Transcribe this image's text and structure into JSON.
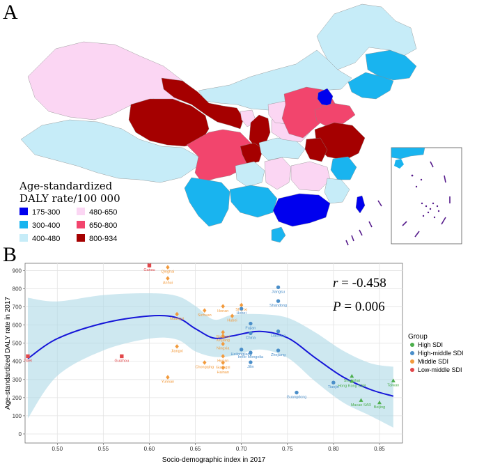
{
  "panel_a": {
    "letter": "A",
    "legend": {
      "title_line1": "Age-standardized",
      "title_line2": "DALY rate/100 000",
      "items": [
        {
          "label": "175-300",
          "color": "#0000ee"
        },
        {
          "label": "300-400",
          "color": "#19b4ef"
        },
        {
          "label": "400-480",
          "color": "#c6ecf8"
        },
        {
          "label": "480-650",
          "color": "#fbd6f3"
        },
        {
          "label": "650-800",
          "color": "#f2456d"
        },
        {
          "label": "800-934",
          "color": "#a50000"
        }
      ]
    }
  },
  "panel_b": {
    "letter": "B",
    "stats": {
      "r_symbol": "r",
      "r_value": " = -0.458",
      "p_symbol": "P",
      "p_value": " = 0.006"
    }
  },
  "chart_data": {
    "type": "scatter",
    "title": "",
    "xlabel": "Socio-demographic index in 2017",
    "ylabel": "Age-standardized DALY rate in 2017",
    "xlim": [
      0.465,
      0.875
    ],
    "ylim": [
      -50,
      940
    ],
    "xticks": [
      0.5,
      0.55,
      0.6,
      0.65,
      0.7,
      0.75,
      0.8,
      0.85
    ],
    "xtick_labels": [
      "0.50",
      "0.55",
      "0.60",
      "0.65",
      "0.70",
      "0.75",
      "0.80",
      "0.85"
    ],
    "yticks": [
      0,
      100,
      200,
      300,
      400,
      500,
      600,
      700,
      800,
      900
    ],
    "ytick_labels": [
      "0",
      "100",
      "200",
      "300",
      "400",
      "500",
      "600",
      "700",
      "800",
      "900"
    ],
    "legend": {
      "title": "Group",
      "items": [
        {
          "key": "high",
          "label": "High SDI",
          "color": "#4cae4c",
          "shape": "triangle"
        },
        {
          "key": "highmid",
          "label": "High-middle SDI",
          "color": "#4a8ec9",
          "shape": "circle"
        },
        {
          "key": "mid",
          "label": "Middle SDI",
          "color": "#f29a3c",
          "shape": "diamond"
        },
        {
          "key": "lowmid",
          "label": "Low-middle SDI",
          "color": "#e2474a",
          "shape": "square"
        }
      ]
    },
    "series": [
      {
        "group": "lowmid",
        "name": "Tibet",
        "x": 0.468,
        "y": 428
      },
      {
        "group": "lowmid",
        "name": "Gansu",
        "x": 0.6,
        "y": 928
      },
      {
        "group": "lowmid",
        "name": "Guizhou",
        "x": 0.57,
        "y": 428
      },
      {
        "group": "mid",
        "name": "Qinghai",
        "x": 0.62,
        "y": 918
      },
      {
        "group": "mid",
        "name": "Anhui",
        "x": 0.62,
        "y": 857
      },
      {
        "group": "mid",
        "name": "Henan",
        "x": 0.68,
        "y": 703
      },
      {
        "group": "mid",
        "name": "Shanxi",
        "x": 0.7,
        "y": 710
      },
      {
        "group": "mid",
        "name": "Sichuan",
        "x": 0.66,
        "y": 680
      },
      {
        "group": "mid",
        "name": "Hubei",
        "x": 0.69,
        "y": 650
      },
      {
        "group": "mid",
        "name": "Guangxi",
        "x": 0.63,
        "y": 660
      },
      {
        "group": "mid",
        "name": "Shaanxi",
        "x": 0.68,
        "y": 560
      },
      {
        "group": "mid",
        "name": "Xinjiang",
        "x": 0.68,
        "y": 540
      },
      {
        "group": "mid",
        "name": "Ningxia",
        "x": 0.68,
        "y": 496
      },
      {
        "group": "mid",
        "name": "Jiangxi",
        "x": 0.63,
        "y": 482
      },
      {
        "group": "mid",
        "name": "Hunan",
        "x": 0.68,
        "y": 428
      },
      {
        "group": "mid",
        "name": "Chongqing",
        "x": 0.66,
        "y": 393
      },
      {
        "group": "mid",
        "name": "Guangxi",
        "x": 0.68,
        "y": 392
      },
      {
        "group": "mid",
        "name": "Hainan",
        "x": 0.68,
        "y": 365
      },
      {
        "group": "mid",
        "name": "Yunnan",
        "x": 0.62,
        "y": 312
      },
      {
        "group": "highmid",
        "name": "Jiangsu",
        "x": 0.74,
        "y": 808
      },
      {
        "group": "highmid",
        "name": "Shandong",
        "x": 0.74,
        "y": 732
      },
      {
        "group": "highmid",
        "name": "Hebei",
        "x": 0.7,
        "y": 690
      },
      {
        "group": "highmid",
        "name": "Fujian",
        "x": 0.71,
        "y": 608
      },
      {
        "group": "highmid",
        "name": "China",
        "x": 0.71,
        "y": 555
      },
      {
        "group": "highmid",
        "name": "Liaoning",
        "x": 0.74,
        "y": 565
      },
      {
        "group": "highmid",
        "name": "Heilongjiang",
        "x": 0.7,
        "y": 465
      },
      {
        "group": "highmid",
        "name": "Inner Mongolia",
        "x": 0.71,
        "y": 448
      },
      {
        "group": "highmid",
        "name": "Zhejiang",
        "x": 0.74,
        "y": 460
      },
      {
        "group": "highmid",
        "name": "Jilin",
        "x": 0.71,
        "y": 395
      },
      {
        "group": "highmid",
        "name": "Guangdong",
        "x": 0.76,
        "y": 228
      },
      {
        "group": "highmid",
        "name": "Tianjin",
        "x": 0.8,
        "y": 283
      },
      {
        "group": "high",
        "name": "Shanghai",
        "x": 0.82,
        "y": 318
      },
      {
        "group": "high",
        "name": "Hong Kong SAR",
        "x": 0.82,
        "y": 290
      },
      {
        "group": "high",
        "name": "Taiwan",
        "x": 0.865,
        "y": 293
      },
      {
        "group": "high",
        "name": "Macao SAR",
        "x": 0.83,
        "y": 185
      },
      {
        "group": "high",
        "name": "Beijing",
        "x": 0.85,
        "y": 172
      }
    ],
    "smooth_line": {
      "x": [
        0.468,
        0.5,
        0.55,
        0.6,
        0.63,
        0.65,
        0.67,
        0.69,
        0.72,
        0.75,
        0.78,
        0.81,
        0.84,
        0.865
      ],
      "y": [
        415,
        525,
        610,
        650,
        640,
        580,
        528,
        540,
        565,
        530,
        420,
        315,
        245,
        208
      ]
    },
    "ci_band": {
      "x": [
        0.468,
        0.5,
        0.55,
        0.6,
        0.63,
        0.65,
        0.67,
        0.69,
        0.72,
        0.75,
        0.78,
        0.81,
        0.84,
        0.865
      ],
      "upper": [
        750,
        730,
        765,
        775,
        760,
        705,
        630,
        655,
        660,
        640,
        560,
        460,
        390,
        370
      ],
      "lower": [
        85,
        320,
        460,
        525,
        520,
        455,
        425,
        430,
        465,
        420,
        290,
        175,
        100,
        35
      ]
    }
  }
}
